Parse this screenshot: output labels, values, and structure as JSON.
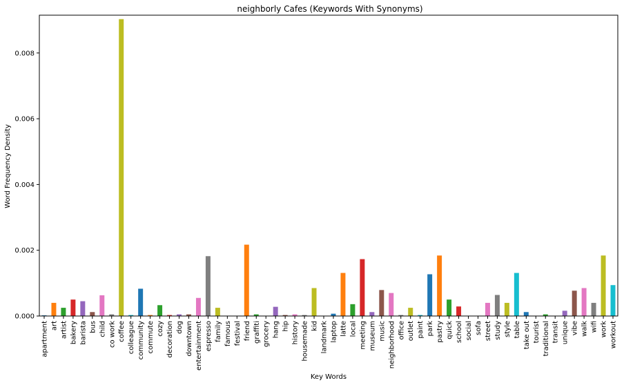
{
  "chart_data": {
    "type": "bar",
    "title": "neighborly Cafes (Keywords With Synonyms)",
    "xlabel": "Key Words",
    "ylabel": "Word Frequency Density",
    "ylim": [
      0,
      0.00915
    ],
    "yticks": [
      "0.000",
      "0.002",
      "0.004",
      "0.006",
      "0.008"
    ],
    "grid": false,
    "legend": "none",
    "palette": [
      "#1f77b4",
      "#ff7f0e",
      "#2ca02c",
      "#d62728",
      "#9467bd",
      "#8c564b",
      "#e377c2",
      "#7f7f7f",
      "#bcbd22",
      "#17becf"
    ],
    "categories": [
      "apartment",
      "art",
      "artist",
      "bakery",
      "barista",
      "bus",
      "child",
      "co work",
      "coffee",
      "colleague",
      "community",
      "commute",
      "cozy",
      "decoration",
      "dog",
      "downtown",
      "entertainment",
      "espresso",
      "family",
      "famous",
      "festival",
      "friend",
      "graffiti",
      "grocery",
      "hang",
      "hip",
      "history",
      "housemade",
      "kid",
      "landmark",
      "laptop",
      "latte",
      "local",
      "meeting",
      "museum",
      "music",
      "neighborhood",
      "office",
      "outlet",
      "paint",
      "park",
      "pastry",
      "quick",
      "school",
      "social",
      "sofa",
      "street",
      "study",
      "style",
      "table",
      "take out",
      "tourist",
      "traditional",
      "transit",
      "unique",
      "vibe",
      "walk",
      "wifi",
      "work",
      "workout"
    ],
    "values": [
      2e-05,
      0.0004,
      0.00025,
      0.0005,
      0.00045,
      0.00012,
      0.00063,
      5e-05,
      0.00903,
      3e-05,
      0.00083,
      3e-05,
      0.00033,
      3e-05,
      5e-05,
      5e-05,
      0.00055,
      0.00182,
      0.00025,
      1e-05,
      1e-05,
      0.00217,
      5e-05,
      1e-05,
      0.00028,
      3e-05,
      5e-05,
      3e-05,
      0.00085,
      1e-05,
      7e-05,
      0.00131,
      0.00036,
      0.00173,
      0.00012,
      0.00079,
      0.0007,
      3e-05,
      0.00025,
      3e-05,
      0.00127,
      0.00184,
      0.0005,
      0.00029,
      1e-05,
      1e-05,
      0.0004,
      0.00064,
      0.0004,
      0.00131,
      0.00012,
      1e-05,
      5e-05,
      1e-05,
      0.00016,
      0.00077,
      0.00085,
      0.0004,
      0.00184,
      0.00094
    ]
  }
}
